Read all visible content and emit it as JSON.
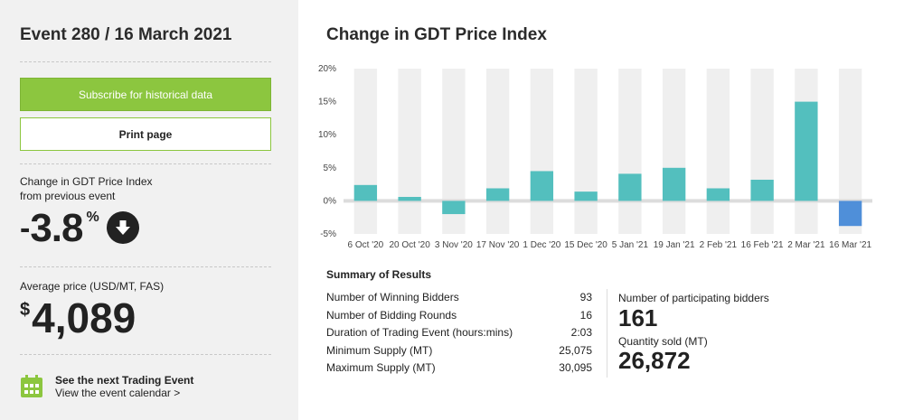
{
  "sidebar": {
    "event_title": "Event 280 / 16 March 2021",
    "subscribe_label": "Subscribe for historical data",
    "print_label": "Print page",
    "change_label_line1": "Change in GDT Price Index",
    "change_label_line2": "from previous event",
    "change_sign": "-",
    "change_value": "3.8",
    "change_unit": "%",
    "change_direction_icon": "arrow-down-icon",
    "avg_price_label": "Average price (USD/MT, FAS)",
    "avg_price_currency": "$",
    "avg_price_value": "4,089",
    "next_event_title": "See the next Trading Event",
    "next_event_link": "View the event calendar >",
    "calendar_icon": "calendar-icon"
  },
  "colors": {
    "green": "#8cc63f",
    "bar_positive": "#53bfbe",
    "bar_negative": "#4f8fd9",
    "column_band": "#efefef"
  },
  "chart_data": {
    "type": "bar",
    "title": "Change in GDT Price Index",
    "categories": [
      "6 Oct '20",
      "20 Oct '20",
      "3 Nov '20",
      "17 Nov '20",
      "1 Dec '20",
      "15 Dec '20",
      "5 Jan '21",
      "19 Jan '21",
      "2 Feb '21",
      "16 Feb '21",
      "2 Mar '21",
      "16 Mar '21"
    ],
    "values": [
      2.4,
      0.6,
      -2.0,
      1.9,
      4.5,
      1.4,
      4.1,
      5.0,
      1.9,
      3.2,
      15.0,
      -3.8
    ],
    "ylim": [
      -5,
      20
    ],
    "yticks": [
      -5,
      0,
      5,
      10,
      15,
      20
    ],
    "ytick_labels": [
      "-5%",
      "0%",
      "5%",
      "10%",
      "15%",
      "20%"
    ],
    "highlight_last": true,
    "grid": false
  },
  "summary": {
    "title": "Summary of Results",
    "rows": [
      {
        "label": "Number of Winning Bidders",
        "value": "93"
      },
      {
        "label": "Number of Bidding Rounds",
        "value": "16"
      },
      {
        "label": "Duration of Trading Event (hours:mins)",
        "value": "2:03"
      },
      {
        "label": "Minimum Supply (MT)",
        "value": "25,075"
      },
      {
        "label": "Maximum Supply (MT)",
        "value": "30,095"
      }
    ],
    "participating_label": "Number of participating bidders",
    "participating_value": "161",
    "quantity_label": "Quantity sold (MT)",
    "quantity_value": "26,872"
  }
}
